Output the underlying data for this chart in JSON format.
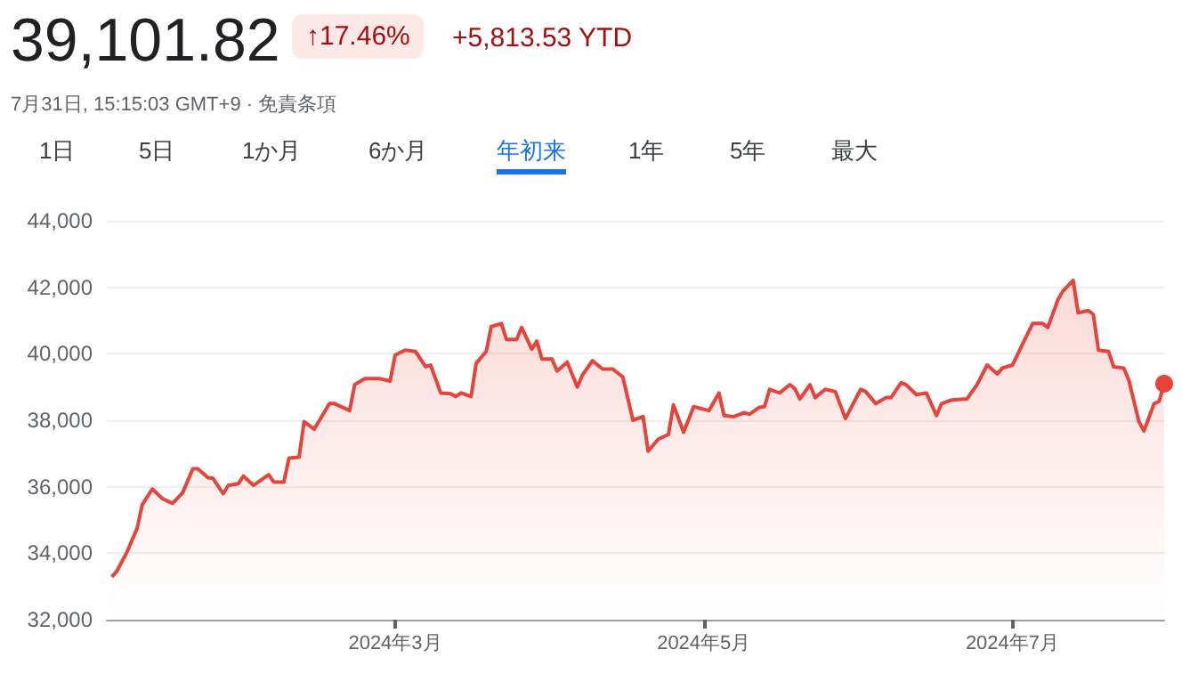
{
  "chart_data": {
    "type": "area",
    "title": "39,101.82",
    "annotations": [
      "↑17.46%",
      "+5,813.53 YTD",
      "7月31日, 15:15:03 GMT+9 · 免責条項",
      "1日",
      "5日",
      "1か月",
      "6か月",
      "年初来",
      "1年",
      "5年",
      "最大"
    ],
    "x": [
      "2024-01-05",
      "2024-01-06",
      "2024-01-08",
      "2024-01-10",
      "2024-01-11",
      "2024-01-13",
      "2024-01-15",
      "2024-01-17",
      "2024-01-19",
      "2024-01-21",
      "2024-01-22",
      "2024-01-24",
      "2024-01-25",
      "2024-01-27",
      "2024-01-28",
      "2024-01-30",
      "2024-01-31",
      "2024-02-02",
      "2024-02-05",
      "2024-02-06",
      "2024-02-08",
      "2024-02-09",
      "2024-02-11",
      "2024-02-12",
      "2024-02-14",
      "2024-02-17",
      "2024-02-18",
      "2024-02-21",
      "2024-02-22",
      "2024-02-24",
      "2024-02-27",
      "2024-02-29",
      "2024-03-01",
      "2024-03-03",
      "2024-03-05",
      "2024-03-07",
      "2024-03-08",
      "2024-03-10",
      "2024-03-12",
      "2024-03-13",
      "2024-03-14",
      "2024-03-16",
      "2024-03-17",
      "2024-03-19",
      "2024-03-20",
      "2024-03-22",
      "2024-03-23",
      "2024-03-25",
      "2024-03-26",
      "2024-03-28",
      "2024-03-29",
      "2024-03-30",
      "2024-04-01",
      "2024-04-02",
      "2024-04-04",
      "2024-04-06",
      "2024-04-07",
      "2024-04-09",
      "2024-04-11",
      "2024-04-13",
      "2024-04-15",
      "2024-04-17",
      "2024-04-19",
      "2024-04-20",
      "2024-04-22",
      "2024-04-24",
      "2024-04-25",
      "2024-04-27",
      "2024-04-29",
      "2024-05-02",
      "2024-05-04",
      "2024-05-05",
      "2024-05-07",
      "2024-05-09",
      "2024-05-10",
      "2024-05-12",
      "2024-05-13",
      "2024-05-14",
      "2024-05-16",
      "2024-05-18",
      "2024-05-19",
      "2024-05-20",
      "2024-05-22",
      "2024-05-23",
      "2024-05-25",
      "2024-05-27",
      "2024-05-29",
      "2024-06-01",
      "2024-06-02",
      "2024-06-04",
      "2024-06-06",
      "2024-06-07",
      "2024-06-09",
      "2024-06-10",
      "2024-06-12",
      "2024-06-14",
      "2024-06-16",
      "2024-06-17",
      "2024-06-19",
      "2024-06-22",
      "2024-06-24",
      "2024-06-26",
      "2024-06-28",
      "2024-06-29",
      "2024-07-01",
      "2024-07-03",
      "2024-07-05",
      "2024-07-07",
      "2024-07-08",
      "2024-07-10",
      "2024-07-11",
      "2024-07-13",
      "2024-07-14",
      "2024-07-16",
      "2024-07-17",
      "2024-07-18",
      "2024-07-20",
      "2024-07-21",
      "2024-07-23",
      "2024-07-24",
      "2024-07-26",
      "2024-07-27",
      "2024-07-29",
      "2024-07-30",
      "2024-07-31"
    ],
    "values": [
      33290,
      33460,
      34040,
      34750,
      35460,
      35930,
      35640,
      35500,
      35820,
      36540,
      36540,
      36270,
      36250,
      35790,
      36040,
      36090,
      36320,
      36040,
      36360,
      36140,
      36140,
      36860,
      36890,
      37960,
      37730,
      38500,
      38500,
      38290,
      39070,
      39250,
      39250,
      39180,
      39960,
      40110,
      40070,
      39610,
      39660,
      38820,
      38800,
      38710,
      38820,
      38710,
      39710,
      40070,
      40820,
      40910,
      40430,
      40430,
      40790,
      40140,
      40380,
      39840,
      39840,
      39480,
      39750,
      39000,
      39360,
      39790,
      39540,
      39540,
      39300,
      38000,
      38110,
      37070,
      37430,
      37570,
      38460,
      37640,
      38410,
      38290,
      38820,
      38140,
      38110,
      38230,
      38180,
      38390,
      38410,
      38930,
      38820,
      39070,
      38950,
      38640,
      39070,
      38680,
      38930,
      38860,
      38050,
      38930,
      38860,
      38500,
      38680,
      38680,
      39130,
      39070,
      38770,
      38820,
      38140,
      38500,
      38610,
      38640,
      39070,
      39660,
      39390,
      39570,
      39660,
      40290,
      40910,
      40910,
      40790,
      41630,
      41890,
      42210,
      41230,
      41300,
      41180,
      40110,
      40070,
      39610,
      39570,
      39210,
      37960,
      37680,
      38500,
      38570,
      39100
    ],
    "color": "#e8433a",
    "xlim": [
      "2024-01-04",
      "2024-07-31"
    ],
    "xticks": [
      {
        "value": "2024-03-01",
        "label": "2024年3月"
      },
      {
        "value": "2024-05-01",
        "label": "2024年5月"
      },
      {
        "value": "2024-07-01",
        "label": "2024年7月"
      }
    ],
    "ylim": [
      32000,
      44000
    ],
    "yticks": [
      {
        "value": 32000,
        "label": "32,000"
      },
      {
        "value": 34000,
        "label": "34,000"
      },
      {
        "value": 36000,
        "label": "36,000"
      },
      {
        "value": 38000,
        "label": "38,000"
      },
      {
        "value": 40000,
        "label": "40,000"
      },
      {
        "value": 42000,
        "label": "42,000"
      },
      {
        "value": 44000,
        "label": "44,000"
      }
    ],
    "grid": "y"
  }
}
